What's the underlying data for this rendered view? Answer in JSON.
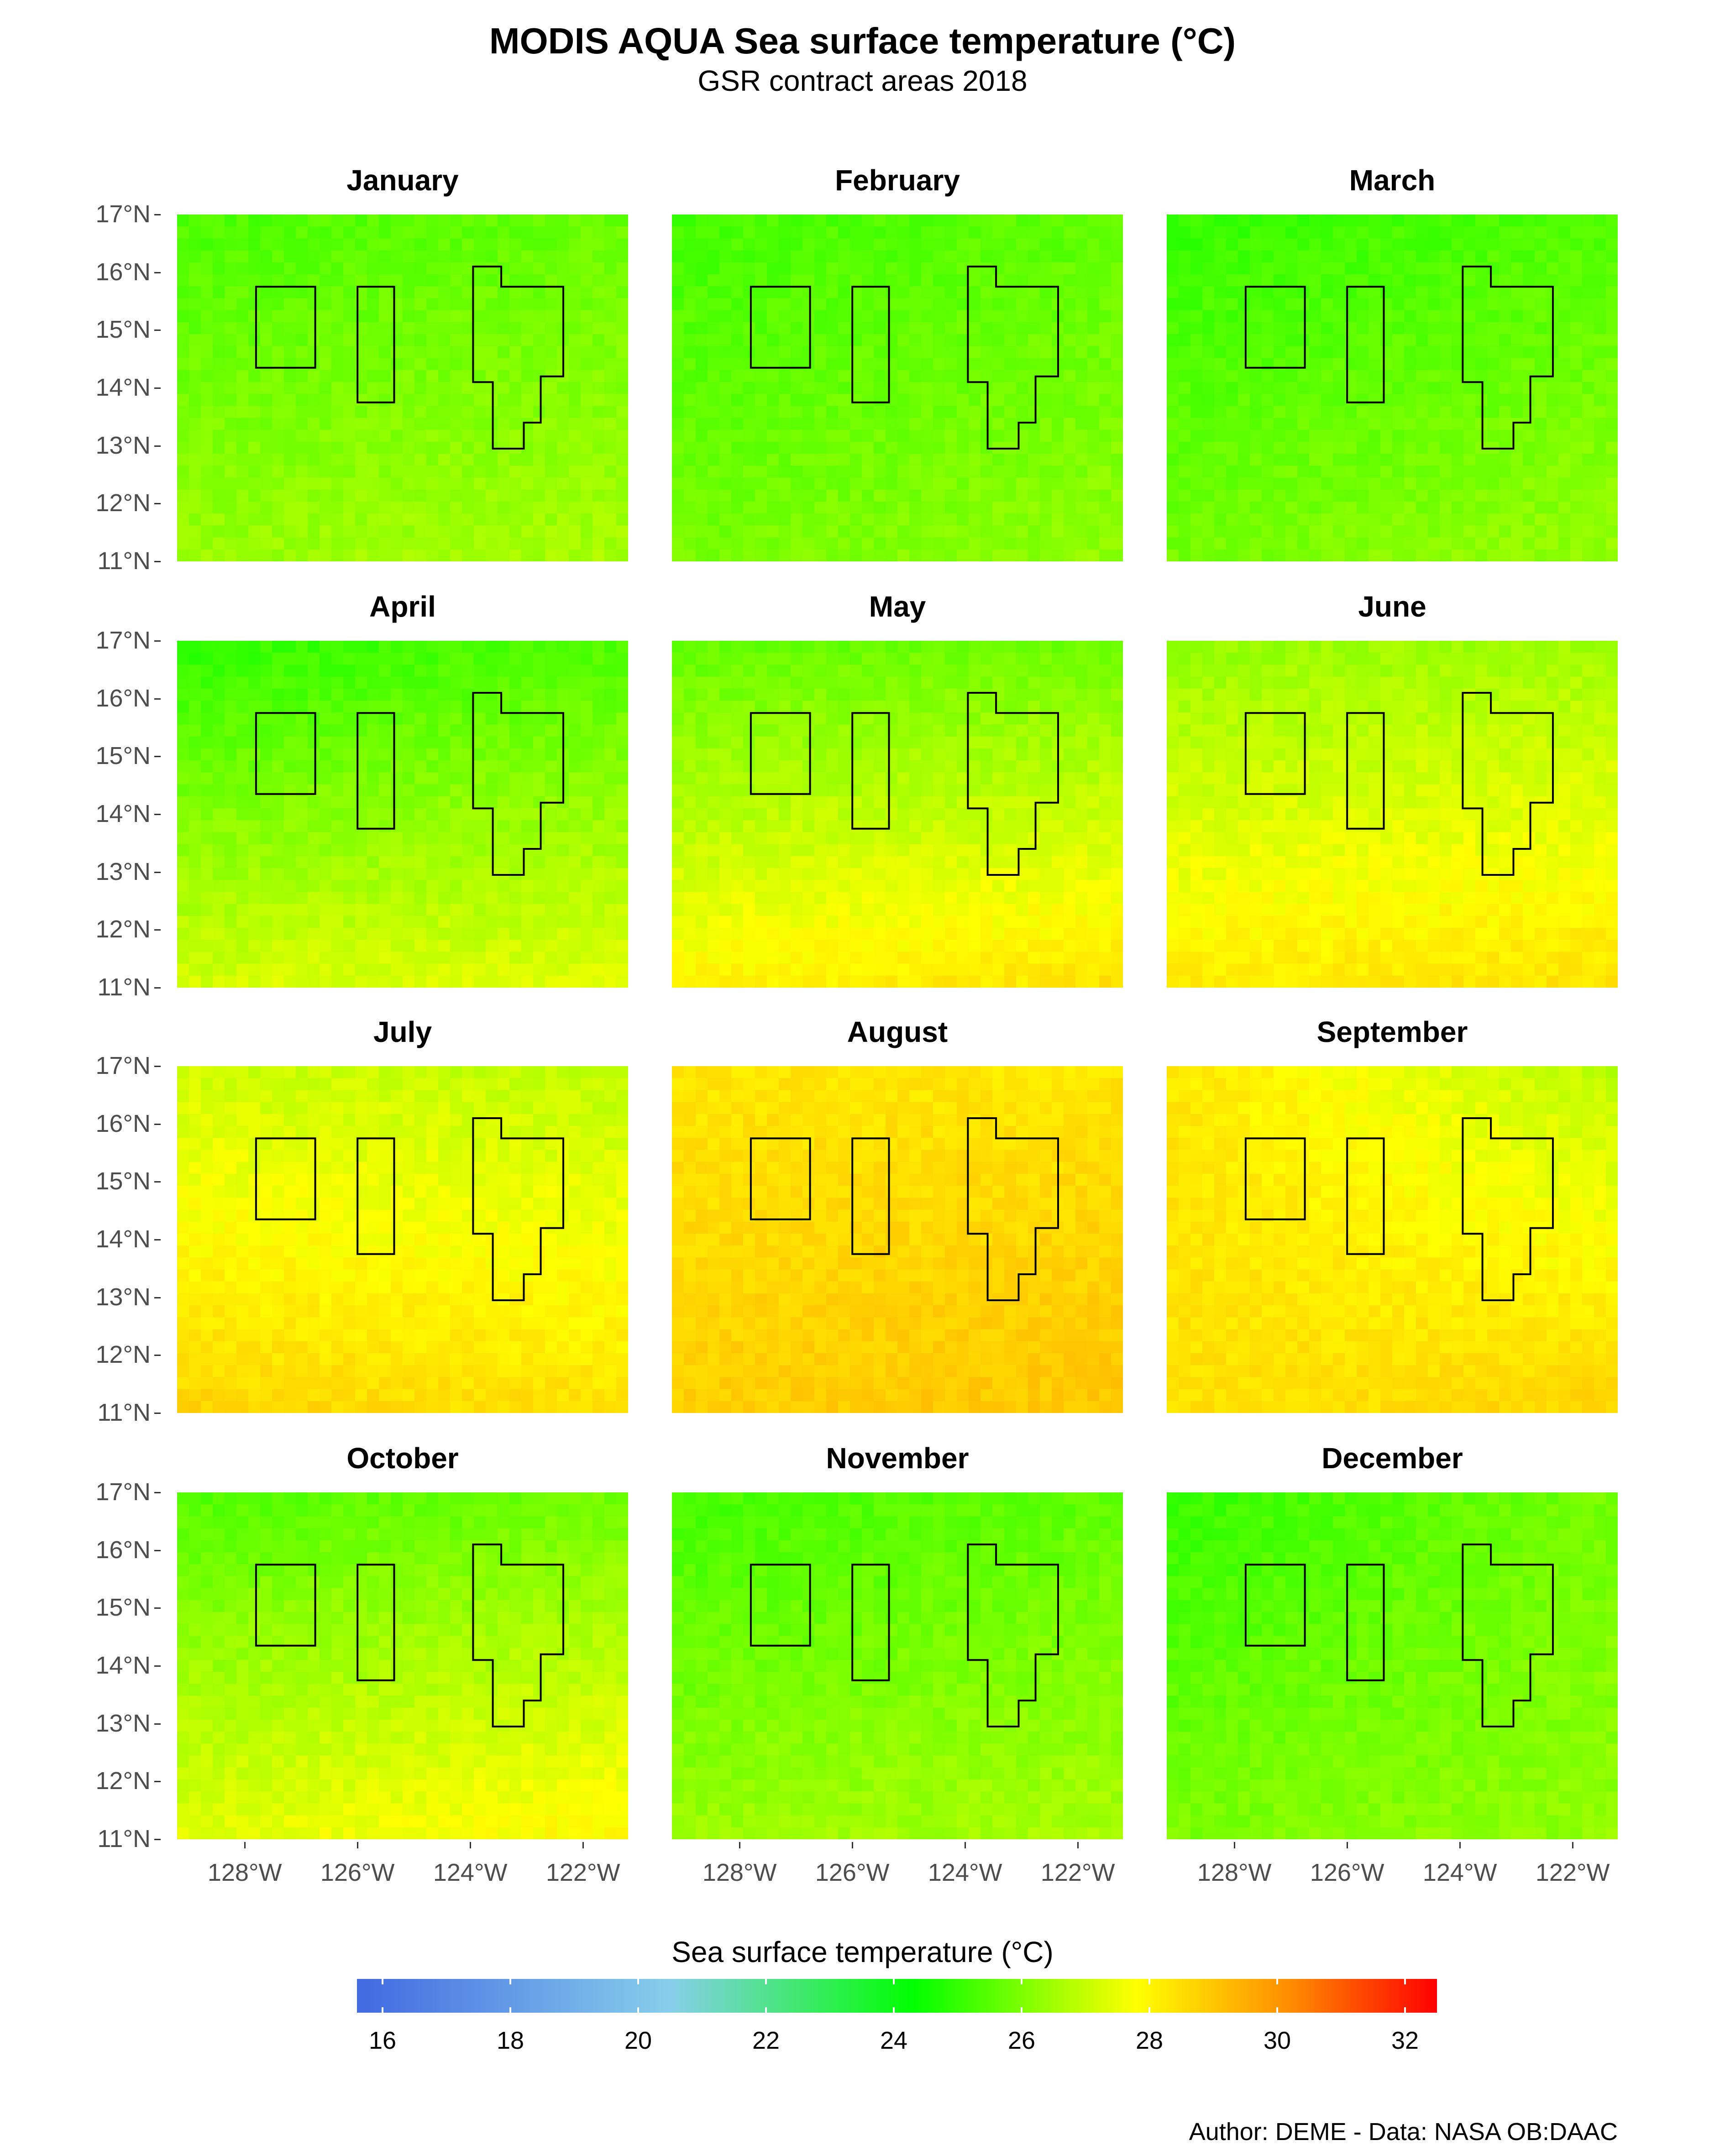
{
  "title": "MODIS AQUA Sea surface temperature (°C)",
  "subtitle": "GSR contract areas 2018",
  "caption": "Author: DEME - Data: NASA OB:DAAC",
  "chart_data": {
    "type": "heatmap",
    "title": "MODIS AQUA Sea surface temperature (°C)",
    "subtitle": "GSR contract areas 2018",
    "xlim": [
      -129.2,
      -121.2
    ],
    "ylim": [
      11,
      17
    ],
    "x_ticks": [
      "128°W",
      "126°W",
      "124°W",
      "122°W"
    ],
    "x_tick_values": [
      -128,
      -126,
      -124,
      -122
    ],
    "y_ticks": [
      "17°N",
      "16°N",
      "15°N",
      "14°N",
      "13°N",
      "12°N",
      "11°N"
    ],
    "y_tick_values": [
      17,
      16,
      15,
      14,
      13,
      12,
      11
    ],
    "colorbar": {
      "title": "Sea surface temperature (°C)",
      "range": [
        15.6,
        32.5
      ],
      "ticks": [
        16,
        18,
        20,
        22,
        24,
        26,
        28,
        30,
        32
      ],
      "colors": [
        "#4169E1",
        "#87CEEB",
        "#00FF00",
        "#FFFF00",
        "#FF8C00",
        "#FF0000"
      ],
      "color_stops": [
        15.6,
        20.5,
        24.3,
        27.8,
        30.2,
        32.5
      ]
    },
    "contract_areas": [
      [
        [
          -127.8,
          15.75
        ],
        [
          -126.75,
          15.75
        ],
        [
          -126.75,
          14.35
        ],
        [
          -127.8,
          14.35
        ]
      ],
      [
        [
          -126.0,
          15.75
        ],
        [
          -125.35,
          15.75
        ],
        [
          -125.35,
          13.75
        ],
        [
          -126.0,
          13.75
        ]
      ],
      [
        [
          -123.95,
          16.1
        ],
        [
          -123.45,
          16.1
        ],
        [
          -123.45,
          15.75
        ],
        [
          -122.35,
          15.75
        ],
        [
          -122.35,
          14.2
        ],
        [
          -122.75,
          14.2
        ],
        [
          -122.75,
          13.4
        ],
        [
          -123.05,
          13.4
        ],
        [
          -123.05,
          12.95
        ],
        [
          -123.6,
          12.95
        ],
        [
          -123.6,
          14.1
        ],
        [
          -123.95,
          14.1
        ]
      ]
    ],
    "panels": [
      {
        "label": "January",
        "top_left": 25.3,
        "top_right": 25.7,
        "bottom_left": 26.4,
        "bottom_right": 26.6
      },
      {
        "label": "February",
        "top_left": 25.2,
        "top_right": 25.6,
        "bottom_left": 25.9,
        "bottom_right": 26.3
      },
      {
        "label": "March",
        "top_left": 25.0,
        "top_right": 25.4,
        "bottom_left": 25.9,
        "bottom_right": 26.4
      },
      {
        "label": "April",
        "top_left": 24.9,
        "top_right": 25.4,
        "bottom_left": 27.2,
        "bottom_right": 27.4
      },
      {
        "label": "May",
        "top_left": 25.6,
        "top_right": 25.8,
        "bottom_left": 28.0,
        "bottom_right": 28.4
      },
      {
        "label": "June",
        "top_left": 26.3,
        "top_right": 26.5,
        "bottom_left": 28.2,
        "bottom_right": 28.4
      },
      {
        "label": "July",
        "top_left": 27.1,
        "top_right": 26.9,
        "bottom_left": 28.7,
        "bottom_right": 28.4
      },
      {
        "label": "August",
        "top_left": 28.3,
        "top_right": 28.3,
        "bottom_left": 28.8,
        "bottom_right": 29.0
      },
      {
        "label": "September",
        "top_left": 28.3,
        "top_right": 26.8,
        "bottom_left": 28.4,
        "bottom_right": 28.7
      },
      {
        "label": "October",
        "top_left": 25.4,
        "top_right": 25.8,
        "bottom_left": 27.4,
        "bottom_right": 28.0
      },
      {
        "label": "November",
        "top_left": 25.2,
        "top_right": 25.6,
        "bottom_left": 26.4,
        "bottom_right": 26.6
      },
      {
        "label": "December",
        "top_left": 25.0,
        "top_right": 25.9,
        "bottom_left": 26.0,
        "bottom_right": 26.3
      }
    ]
  }
}
